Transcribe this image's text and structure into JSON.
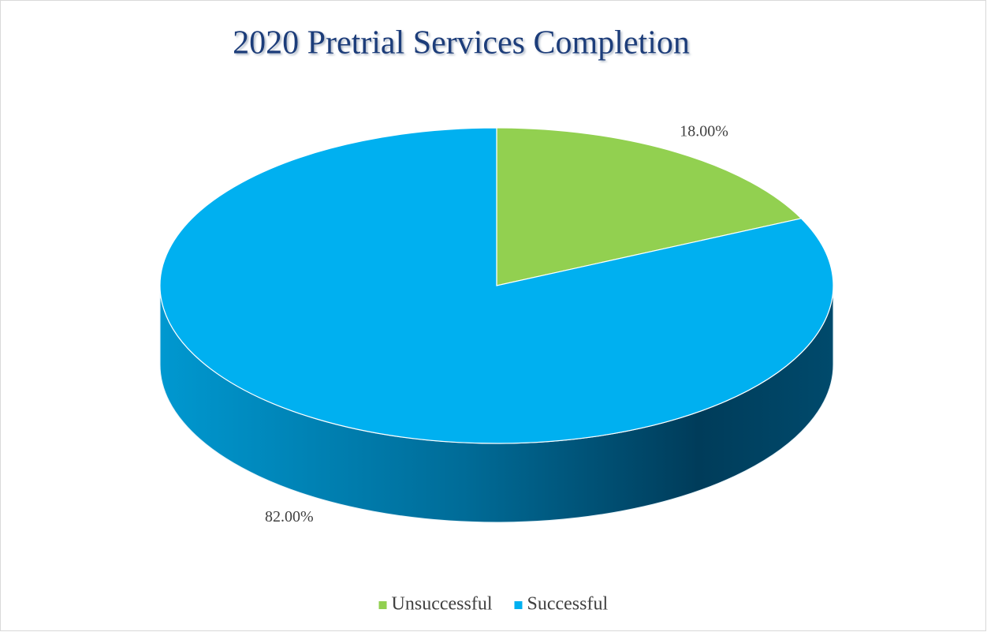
{
  "chart_data": {
    "type": "pie",
    "title": "2020 Pretrial Services Completion",
    "categories": [
      "Unsuccessful",
      "Successful"
    ],
    "values": [
      18,
      82
    ],
    "value_labels": [
      "18.00%",
      "82.00%"
    ],
    "colors": [
      "#92d050",
      "#00b0f0"
    ],
    "legend": "bottom"
  }
}
